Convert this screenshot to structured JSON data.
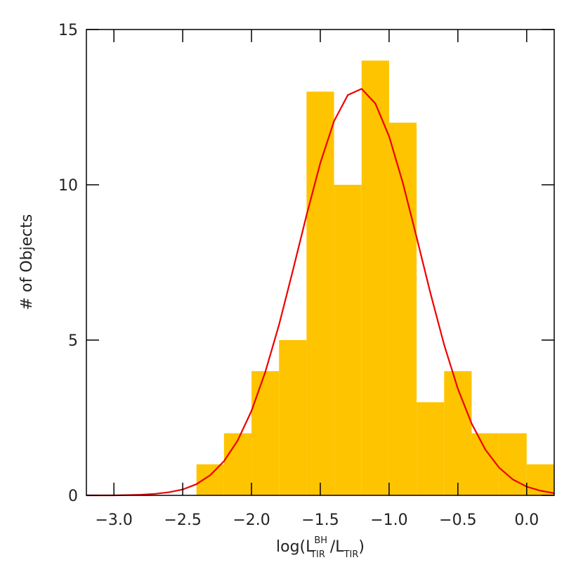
{
  "chart_data": {
    "type": "histogram",
    "bins": [
      -2.4,
      -2.2,
      -2.0,
      -1.8,
      -1.6,
      -1.4,
      -1.2,
      -1.0,
      -0.8,
      -0.6,
      -0.4,
      -0.2,
      0.0,
      0.2
    ],
    "values": [
      1,
      2,
      4,
      5,
      13,
      10,
      14,
      12,
      3,
      4,
      2,
      2,
      1
    ],
    "color": "#ffc400",
    "curve": {
      "color": "#ee0000",
      "x": [
        -3.2,
        -3.1,
        -3.0,
        -2.9,
        -2.8,
        -2.7,
        -2.6,
        -2.5,
        -2.4,
        -2.3,
        -2.2,
        -2.1,
        -2.0,
        -1.9,
        -1.8,
        -1.7,
        -1.6,
        -1.5,
        -1.4,
        -1.3,
        -1.2,
        -1.1,
        -1.0,
        -0.9,
        -0.8,
        -0.7,
        -0.6,
        -0.5,
        -0.4,
        -0.3,
        -0.2,
        -0.1,
        0.0,
        0.1,
        0.2
      ],
      "values": [
        0.0,
        0.0,
        0.0,
        0.01,
        0.02,
        0.05,
        0.1,
        0.19,
        0.36,
        0.65,
        1.1,
        1.77,
        2.72,
        3.97,
        5.49,
        7.23,
        9.02,
        10.7,
        12.05,
        12.89,
        13.09,
        12.62,
        11.56,
        10.06,
        8.31,
        6.52,
        4.85,
        3.43,
        2.31,
        1.47,
        0.89,
        0.51,
        0.28,
        0.15,
        0.07
      ]
    },
    "xlim": [
      -3.2,
      0.2
    ],
    "ylim": [
      0,
      15
    ],
    "xticks": [
      {
        "value": -3.0,
        "label": "−3.0"
      },
      {
        "value": -2.5,
        "label": "−2.5"
      },
      {
        "value": -2.0,
        "label": "−2.0"
      },
      {
        "value": -1.5,
        "label": "−1.5"
      },
      {
        "value": -1.0,
        "label": "−1.0"
      },
      {
        "value": -0.5,
        "label": "−0.5"
      },
      {
        "value": 0.0,
        "label": "0.0"
      }
    ],
    "yticks": [
      0,
      5,
      10,
      15
    ],
    "x_label": [
      "log(L",
      "BH",
      "TIR",
      " /L",
      "TIR",
      ")"
    ],
    "y_label": "# of Objects"
  }
}
